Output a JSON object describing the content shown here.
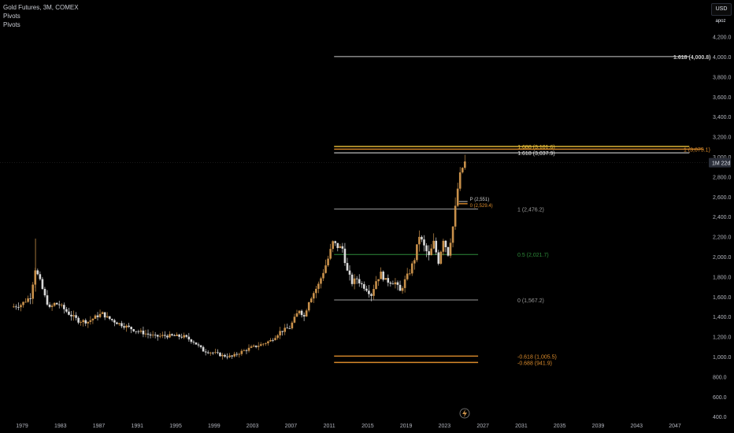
{
  "header": {
    "symbol_line": "Gold Futures, 3M, COMEX",
    "indicators": [
      "Pivots",
      "Pivots"
    ]
  },
  "scale_controls": {
    "currency": "USD",
    "mode": "apoz"
  },
  "colors": {
    "background": "#000000",
    "up_candle": "#c8904a",
    "down_candle": "#d9d9d9",
    "fib_gold": "#f0c33a",
    "fib_orange": "#d98a2b",
    "fib_gray": "#9a9a9a",
    "fib_green": "#2e8b3a",
    "fib_white": "#cccccc"
  },
  "chart_data": {
    "type": "candlestick",
    "symbol": "Gold Futures",
    "interval": "3M",
    "exchange": "COMEX",
    "x_ticks": [
      "1979",
      "1983",
      "1987",
      "1991",
      "1995",
      "1999",
      "2003",
      "2007",
      "2011",
      "2015",
      "2019",
      "2023",
      "2027",
      "2031",
      "2035",
      "2039",
      "2043",
      "2047"
    ],
    "y_ticks": [
      "4,200.0",
      "4,000.0",
      "3,800.0",
      "3,600.0",
      "3,400.0",
      "3,200.0",
      "3,000.0",
      "2,800.0",
      "2,600.0",
      "2,400.0",
      "2,200.0",
      "2,000.0",
      "1,800.0",
      "1,600.0",
      "1,400.0",
      "1,200.0",
      "1,000.0",
      "800.0",
      "600.0",
      "400.0"
    ],
    "y_range": [
      400,
      4300
    ],
    "x_range": [
      1978,
      2050
    ],
    "current_price_label": "1M 22d",
    "current_price": 2940,
    "fib_levels": [
      {
        "label": "1.618 (4,000.8)",
        "value": 4000.8,
        "color": "#cccccc",
        "x_start": 2011.5,
        "x_end": 2048.5,
        "label_pos": "right",
        "boxed": true
      },
      {
        "label": "1.688 (3,101.6)",
        "value": 3101.6,
        "color": "#f0c33a",
        "x_start": 2011.5,
        "x_end": 2048.5,
        "label_pos": "left"
      },
      {
        "label": "1 (3,075.1)",
        "value": 3075.1,
        "color": "#d98a2b",
        "x_start": 2011.5,
        "x_end": 2050,
        "label_pos": "right"
      },
      {
        "label": "1.618 (3,037.9)",
        "value": 3037.9,
        "color": "#e8e8e8",
        "x_start": 2011.5,
        "x_end": 2048.5,
        "label_pos": "left"
      },
      {
        "label": "0 (2,529.4)",
        "value": 2529.4,
        "color": "#d98a2b",
        "x_start": 2024.5,
        "x_end": 2025.4,
        "label_pos": "right_small"
      },
      {
        "label": "P (2,551)",
        "value": 2551,
        "color": "#cccccc",
        "x_start": 2024.5,
        "x_end": 2025.4,
        "label_pos": "right_small"
      },
      {
        "label": "1 (2,476.2)",
        "value": 2476.2,
        "color": "#9a9a9a",
        "x_start": 2011.5,
        "x_end": 2026.5,
        "label_pos": "right"
      },
      {
        "label": "0.5 (2,021.7)",
        "value": 2021.7,
        "color": "#2e8b3a",
        "x_start": 2011.5,
        "x_end": 2026.5,
        "label_pos": "right"
      },
      {
        "label": "0 (1,567.2)",
        "value": 1567.2,
        "color": "#9a9a9a",
        "x_start": 2011.5,
        "x_end": 2026.5,
        "label_pos": "right"
      },
      {
        "label": "-0.618 (1,005.5)",
        "value": 1005.5,
        "color": "#d98a2b",
        "x_start": 2011.5,
        "x_end": 2026.5,
        "label_pos": "right"
      },
      {
        "label": "-0.688 (941.9)",
        "value": 941.9,
        "color": "#d98a2b",
        "x_start": 2011.5,
        "x_end": 2026.5,
        "label_pos": "right"
      }
    ],
    "price_path": [
      [
        1978.0,
        1495
      ],
      [
        1979.0,
        1520
      ],
      [
        1980.0,
        1600
      ],
      [
        1980.5,
        1880
      ],
      [
        1981.0,
        1750
      ],
      [
        1981.5,
        1600
      ],
      [
        1982.0,
        1480
      ],
      [
        1982.5,
        1530
      ],
      [
        1983.0,
        1520
      ],
      [
        1984.0,
        1430
      ],
      [
        1985.0,
        1360
      ],
      [
        1986.0,
        1350
      ],
      [
        1987.0,
        1410
      ],
      [
        1987.5,
        1430
      ],
      [
        1988.0,
        1390
      ],
      [
        1989.0,
        1340
      ],
      [
        1990.0,
        1300
      ],
      [
        1991.0,
        1260
      ],
      [
        1992.0,
        1230
      ],
      [
        1993.0,
        1200
      ],
      [
        1994.0,
        1210
      ],
      [
        1995.0,
        1205
      ],
      [
        1996.0,
        1200
      ],
      [
        1997.0,
        1150
      ],
      [
        1998.0,
        1060
      ],
      [
        1999.0,
        1040
      ],
      [
        2000.0,
        1010
      ],
      [
        2001.0,
        1000
      ],
      [
        2002.0,
        1050
      ],
      [
        2003.0,
        1090
      ],
      [
        2004.0,
        1120
      ],
      [
        2005.0,
        1160
      ],
      [
        2006.0,
        1250
      ],
      [
        2007.0,
        1290
      ],
      [
        2007.5,
        1380
      ],
      [
        2008.0,
        1470
      ],
      [
        2008.5,
        1400
      ],
      [
        2009.0,
        1560
      ],
      [
        2010.0,
        1720
      ],
      [
        2011.0,
        1980
      ],
      [
        2011.5,
        2140
      ],
      [
        2012.0,
        2100
      ],
      [
        2012.5,
        2080
      ],
      [
        2013.0,
        1850
      ],
      [
        2013.5,
        1740
      ],
      [
        2014.0,
        1780
      ],
      [
        2014.5,
        1720
      ],
      [
        2015.0,
        1680
      ],
      [
        2015.5,
        1620
      ],
      [
        2016.0,
        1760
      ],
      [
        2016.5,
        1830
      ],
      [
        2017.0,
        1760
      ],
      [
        2017.5,
        1750
      ],
      [
        2018.0,
        1740
      ],
      [
        2018.5,
        1650
      ],
      [
        2019.0,
        1760
      ],
      [
        2019.5,
        1850
      ],
      [
        2020.0,
        1980
      ],
      [
        2020.5,
        2210
      ],
      [
        2021.0,
        2100
      ],
      [
        2021.5,
        2000
      ],
      [
        2022.0,
        2140
      ],
      [
        2022.5,
        1950
      ],
      [
        2023.0,
        2180
      ],
      [
        2023.5,
        2030
      ],
      [
        2024.0,
        2300
      ],
      [
        2024.3,
        2520
      ],
      [
        2024.6,
        2760
      ],
      [
        2025.0,
        2890
      ],
      [
        2025.2,
        2940
      ]
    ]
  }
}
